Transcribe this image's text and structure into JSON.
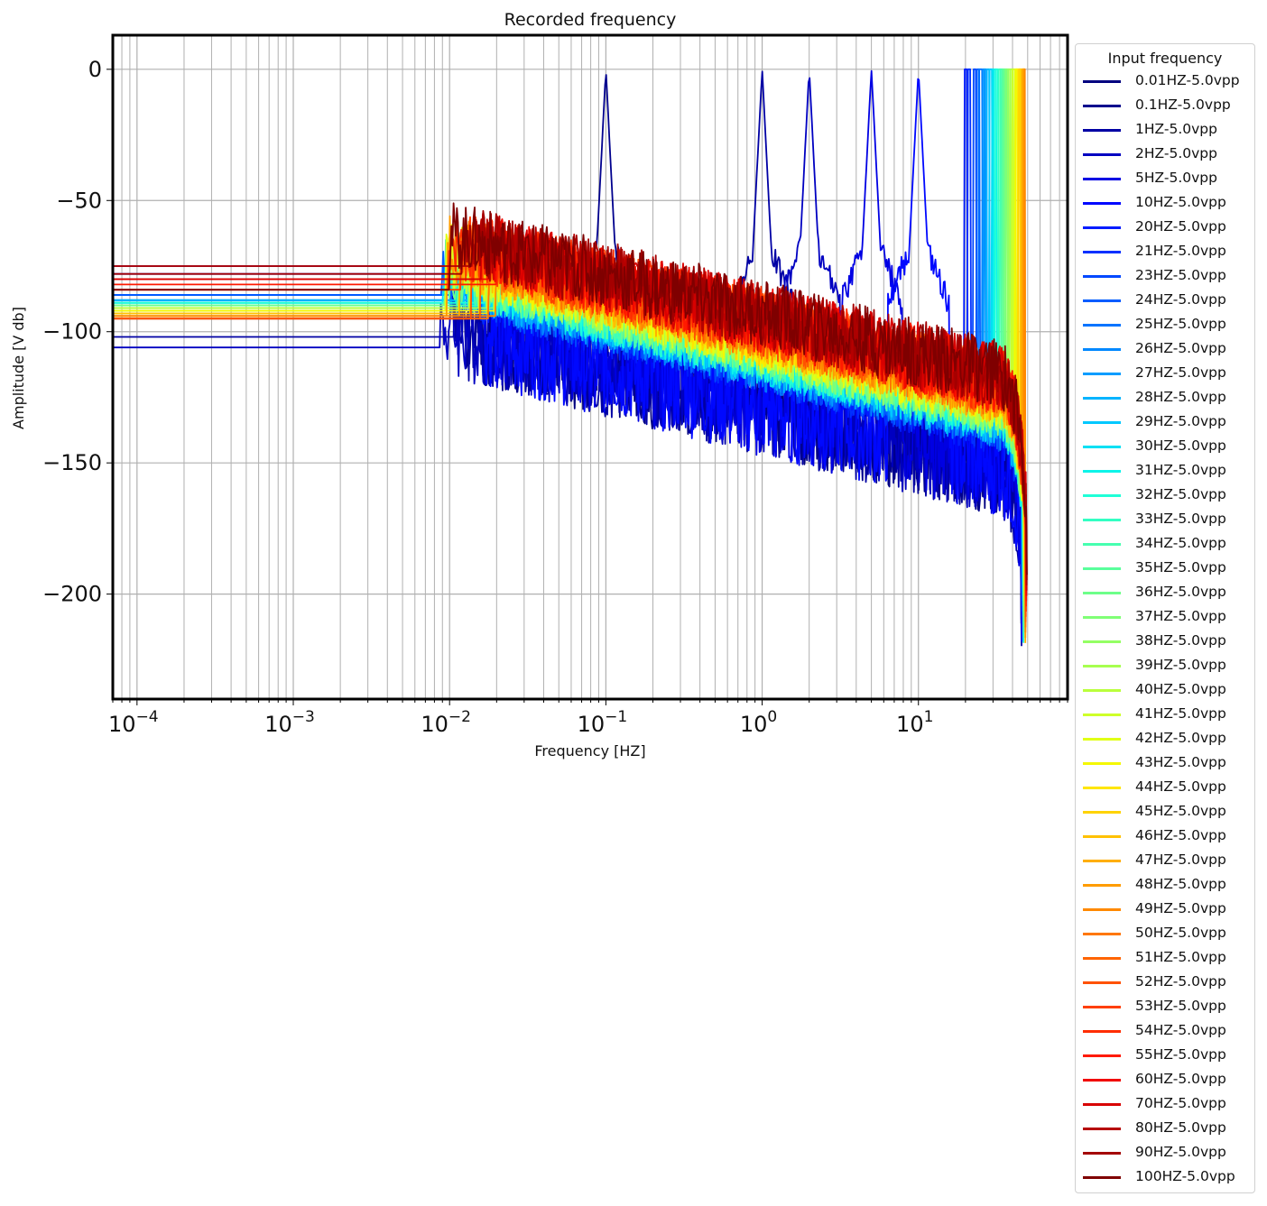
{
  "chart_data": {
    "type": "line",
    "title": "Recorded frequency",
    "xlabel": "Frequency [HZ]",
    "ylabel": "Amplitude [V db]",
    "xscale": "log",
    "xlim": [
      7e-05,
      90
    ],
    "ylim": [
      -240,
      13
    ],
    "x_ticks": [
      {
        "value": 0.0001,
        "base": "10",
        "exp": "−4"
      },
      {
        "value": 0.001,
        "base": "10",
        "exp": "−3"
      },
      {
        "value": 0.01,
        "base": "10",
        "exp": "−2"
      },
      {
        "value": 0.1,
        "base": "10",
        "exp": "−1"
      },
      {
        "value": 1,
        "base": "10",
        "exp": "0"
      },
      {
        "value": 10,
        "base": "10",
        "exp": "1"
      }
    ],
    "y_ticks": [
      {
        "value": 0,
        "label": "0"
      },
      {
        "value": -50,
        "label": "−50"
      },
      {
        "value": -100,
        "label": "−100"
      },
      {
        "value": -150,
        "label": "−150"
      },
      {
        "value": -200,
        "label": "−200"
      }
    ],
    "grid": true,
    "legend_title": "Input frequency",
    "legend_position": "outside-right",
    "series": [
      {
        "name": "0.01HZ-5.0vpp",
        "freq": 0.01,
        "color": "#00007f",
        "flat_level": -75
      },
      {
        "name": "0.1HZ-5.0vpp",
        "freq": 0.1,
        "color": "#00008d",
        "flat_level": -95
      },
      {
        "name": "1HZ-5.0vpp",
        "freq": 1,
        "color": "#0000a4",
        "flat_level": -102
      },
      {
        "name": "2HZ-5.0vpp",
        "freq": 2,
        "color": "#0000c1",
        "flat_level": -106
      },
      {
        "name": "5HZ-5.0vpp",
        "freq": 5,
        "color": "#0000e3",
        "flat_level": -78
      },
      {
        "name": "10HZ-5.0vpp",
        "freq": 10,
        "color": "#0008ff",
        "flat_level": -86
      },
      {
        "name": "20HZ-5.0vpp",
        "freq": 20,
        "color": "#001cff",
        "flat_level": -86
      },
      {
        "name": "21HZ-5.0vpp",
        "freq": 21,
        "color": "#0030ff",
        "flat_level": -86
      },
      {
        "name": "23HZ-5.0vpp",
        "freq": 23,
        "color": "#0048ff",
        "flat_level": -86
      },
      {
        "name": "24HZ-5.0vpp",
        "freq": 24,
        "color": "#005cff",
        "flat_level": -86
      },
      {
        "name": "25HZ-5.0vpp",
        "freq": 25,
        "color": "#0074ff",
        "flat_level": -88
      },
      {
        "name": "26HZ-5.0vpp",
        "freq": 26,
        "color": "#0088ff",
        "flat_level": -88
      },
      {
        "name": "27HZ-5.0vpp",
        "freq": 27,
        "color": "#009cff",
        "flat_level": -88
      },
      {
        "name": "28HZ-5.0vpp",
        "freq": 28,
        "color": "#00b4ff",
        "flat_level": -88
      },
      {
        "name": "29HZ-5.0vpp",
        "freq": 29,
        "color": "#00c8ff",
        "flat_level": -89
      },
      {
        "name": "30HZ-5.0vpp",
        "freq": 30,
        "color": "#00e0f4",
        "flat_level": -89
      },
      {
        "name": "31HZ-5.0vpp",
        "freq": 31,
        "color": "#0df4e9",
        "flat_level": -89
      },
      {
        "name": "32HZ-5.0vpp",
        "freq": 32,
        "color": "#1fffd7",
        "flat_level": -89
      },
      {
        "name": "33HZ-5.0vpp",
        "freq": 33,
        "color": "#33ffc3",
        "flat_level": -90
      },
      {
        "name": "34HZ-5.0vpp",
        "freq": 34,
        "color": "#46ffb0",
        "flat_level": -90
      },
      {
        "name": "35HZ-5.0vpp",
        "freq": 35,
        "color": "#5aff9c",
        "flat_level": -90
      },
      {
        "name": "36HZ-5.0vpp",
        "freq": 36,
        "color": "#6dff89",
        "flat_level": -90
      },
      {
        "name": "37HZ-5.0vpp",
        "freq": 37,
        "color": "#80ff76",
        "flat_level": -91
      },
      {
        "name": "38HZ-5.0vpp",
        "freq": 38,
        "color": "#94ff63",
        "flat_level": -91
      },
      {
        "name": "39HZ-5.0vpp",
        "freq": 39,
        "color": "#a7ff4f",
        "flat_level": -91
      },
      {
        "name": "40HZ-5.0vpp",
        "freq": 40,
        "color": "#baff3c",
        "flat_level": -91
      },
      {
        "name": "41HZ-5.0vpp",
        "freq": 41,
        "color": "#ceff29",
        "flat_level": -92
      },
      {
        "name": "42HZ-5.0vpp",
        "freq": 42,
        "color": "#e1ff16",
        "flat_level": -92
      },
      {
        "name": "43HZ-5.0vpp",
        "freq": 43,
        "color": "#f4f802",
        "flat_level": -92
      },
      {
        "name": "44HZ-5.0vpp",
        "freq": 44,
        "color": "#ffe600",
        "flat_level": -93
      },
      {
        "name": "45HZ-5.0vpp",
        "freq": 45,
        "color": "#ffd300",
        "flat_level": -93
      },
      {
        "name": "46HZ-5.0vpp",
        "freq": 46,
        "color": "#ffc100",
        "flat_level": -93
      },
      {
        "name": "47HZ-5.0vpp",
        "freq": 47,
        "color": "#ffae00",
        "flat_level": -94
      },
      {
        "name": "48HZ-5.0vpp",
        "freq": 48,
        "color": "#ff9c00",
        "flat_level": -94
      },
      {
        "name": "49HZ-5.0vpp",
        "freq": 49,
        "color": "#ff8900",
        "flat_level": -94
      },
      {
        "name": "50HZ-5.0vpp",
        "freq": 50,
        "color": "#ff7700",
        "flat_level": -95
      },
      {
        "name": "51HZ-5.0vpp",
        "freq": 51,
        "color": "#ff6400",
        "flat_level": -95
      },
      {
        "name": "52HZ-5.0vpp",
        "freq": 52,
        "color": "#ff5200",
        "flat_level": -95
      },
      {
        "name": "53HZ-5.0vpp",
        "freq": 53,
        "color": "#ff3f00",
        "flat_level": -84
      },
      {
        "name": "54HZ-5.0vpp",
        "freq": 54,
        "color": "#ff2d00",
        "flat_level": -84
      },
      {
        "name": "55HZ-5.0vpp",
        "freq": 55,
        "color": "#ff1a00",
        "flat_level": -82
      },
      {
        "name": "60HZ-5.0vpp",
        "freq": 60,
        "color": "#f10800",
        "flat_level": -80
      },
      {
        "name": "70HZ-5.0vpp",
        "freq": 70,
        "color": "#d80000",
        "flat_level": -80
      },
      {
        "name": "80HZ-5.0vpp",
        "freq": 80,
        "color": "#b60000",
        "flat_level": -75
      },
      {
        "name": "90HZ-5.0vpp",
        "freq": 90,
        "color": "#a40000",
        "flat_level": -78
      },
      {
        "name": "100HZ-5.0vpp",
        "freq": 100,
        "color": "#7f0000",
        "flat_level": -84
      }
    ]
  }
}
